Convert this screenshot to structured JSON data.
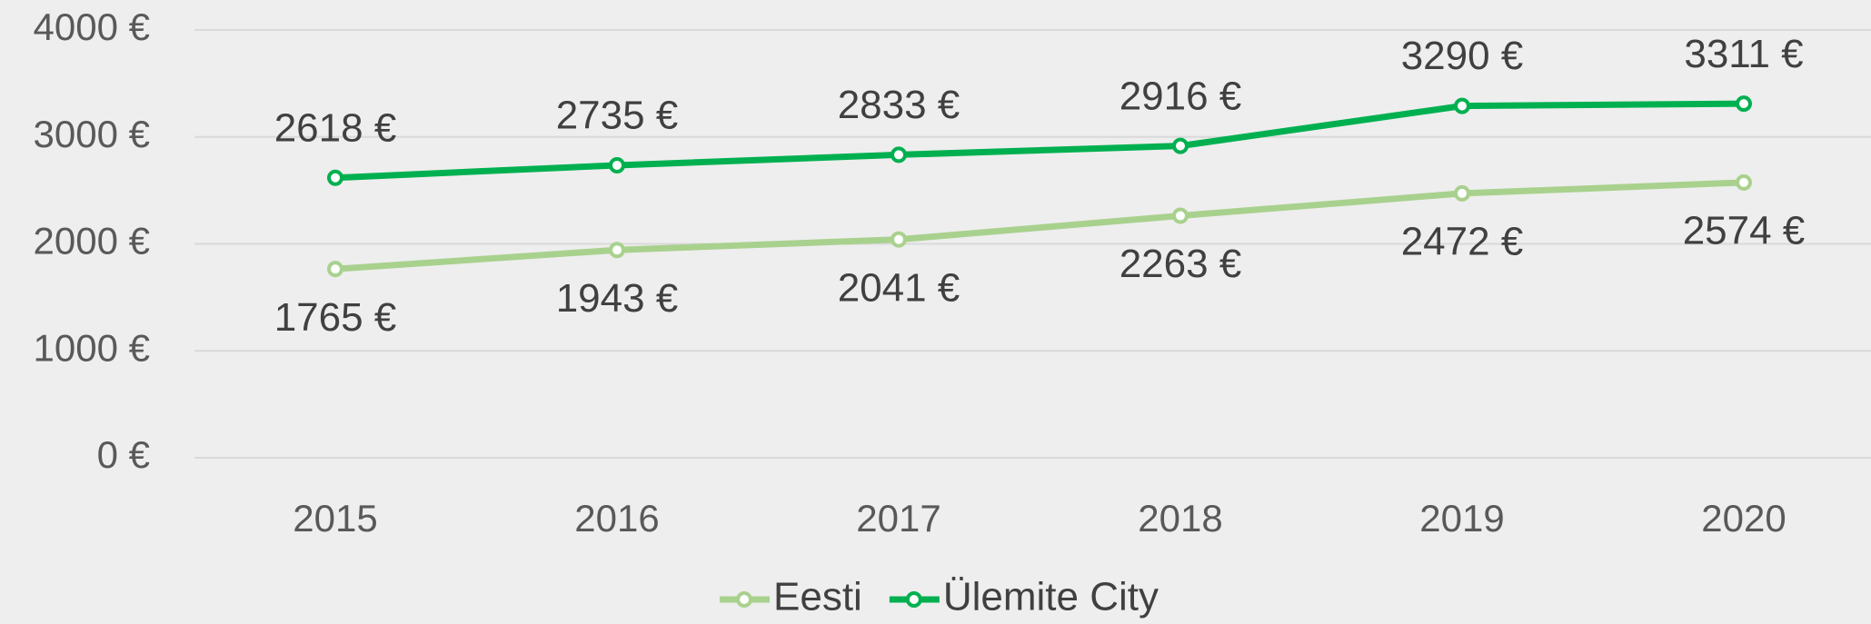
{
  "chart_data": {
    "type": "line",
    "categories": [
      "2015",
      "2016",
      "2017",
      "2018",
      "2019",
      "2020"
    ],
    "series": [
      {
        "name": "Eesti",
        "color": "#a9d18e",
        "values": [
          1765,
          1943,
          2041,
          2263,
          2472,
          2574
        ],
        "value_labels": [
          "1765 €",
          "1943 €",
          "2041 €",
          "2263 €",
          "2472 €",
          "2574 €"
        ]
      },
      {
        "name": "Ülemite City",
        "color": "#00b050",
        "values": [
          2618,
          2735,
          2833,
          2916,
          3290,
          3311
        ],
        "value_labels": [
          "2618 €",
          "2735 €",
          "2833 €",
          "2916 €",
          "3290 €",
          "3311 €"
        ]
      }
    ],
    "ylim": [
      0,
      4000
    ],
    "yticks": [
      {
        "value": 0,
        "label": "0 €"
      },
      {
        "value": 1000,
        "label": "1000 €"
      },
      {
        "value": 2000,
        "label": "2000 €"
      },
      {
        "value": 3000,
        "label": "3000 €"
      },
      {
        "value": 4000,
        "label": "4000 €"
      }
    ],
    "grid": true,
    "legend": "bottom"
  }
}
